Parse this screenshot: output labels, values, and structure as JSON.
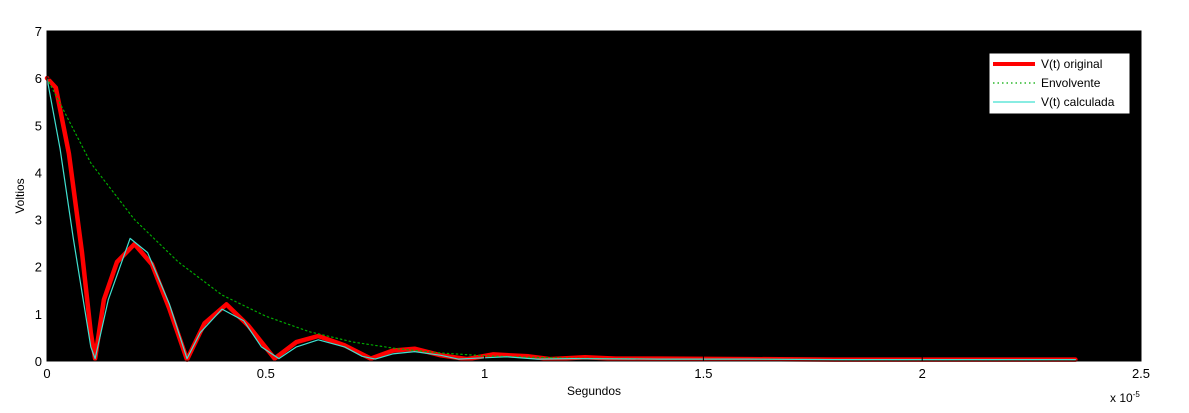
{
  "chart_data": {
    "type": "line",
    "xlabel": "Segundos",
    "ylabel": "Voltios",
    "x_multiplier_base": "x 10",
    "x_multiplier_exp": "-5",
    "xlim": [
      0,
      2.5
    ],
    "ylim": [
      0,
      7
    ],
    "xticks": [
      0,
      0.5,
      1,
      1.5,
      2,
      2.5
    ],
    "xtick_labels": [
      "0",
      "0.5",
      "1",
      "1.5",
      "2",
      "2.5"
    ],
    "yticks": [
      0,
      1,
      2,
      3,
      4,
      5,
      6,
      7
    ],
    "ytick_labels": [
      "0",
      "1",
      "2",
      "3",
      "4",
      "5",
      "6",
      "7"
    ],
    "grid": false,
    "legend_position": "top-right",
    "colors": {
      "plot_background": "#000000",
      "original": "#ff0000",
      "envolvente": "#00aa00",
      "calculada": "#40e0d0"
    },
    "series": [
      {
        "name": "V(t) original",
        "style": "thick-solid",
        "x": [
          0,
          0.02,
          0.05,
          0.08,
          0.1,
          0.11,
          0.13,
          0.16,
          0.2,
          0.24,
          0.28,
          0.32,
          0.36,
          0.41,
          0.46,
          0.52,
          0.57,
          0.62,
          0.68,
          0.74,
          0.79,
          0.84,
          0.9,
          0.96,
          1.02,
          1.1,
          1.15,
          1.23,
          1.3,
          1.4,
          1.6,
          1.8,
          2.0,
          2.2,
          2.35
        ],
        "y": [
          6.0,
          5.8,
          4.4,
          2.3,
          0.6,
          0.05,
          1.3,
          2.1,
          2.48,
          2.05,
          1.1,
          0.03,
          0.8,
          1.2,
          0.75,
          0.05,
          0.4,
          0.53,
          0.33,
          0.05,
          0.22,
          0.26,
          0.12,
          0.04,
          0.14,
          0.1,
          0.04,
          0.08,
          0.05,
          0.05,
          0.04,
          0.03,
          0.03,
          0.03,
          0.03
        ]
      },
      {
        "name": "Envolvente",
        "style": "dotted",
        "x": [
          0,
          0.1,
          0.2,
          0.3,
          0.4,
          0.5,
          0.6,
          0.7,
          0.8,
          0.9,
          1.0,
          1.1,
          1.2,
          1.3,
          1.4,
          1.6,
          1.8,
          2.0,
          2.2,
          2.35
        ],
        "y": [
          6.0,
          4.2,
          3.0,
          2.1,
          1.4,
          0.95,
          0.62,
          0.4,
          0.26,
          0.17,
          0.11,
          0.08,
          0.06,
          0.05,
          0.04,
          0.04,
          0.03,
          0.03,
          0.03,
          0.03
        ]
      },
      {
        "name": "V(t) calculada",
        "style": "solid",
        "x": [
          0,
          0.03,
          0.06,
          0.1,
          0.11,
          0.14,
          0.19,
          0.23,
          0.28,
          0.32,
          0.35,
          0.4,
          0.45,
          0.49,
          0.53,
          0.57,
          0.62,
          0.68,
          0.72,
          0.75,
          0.79,
          0.84,
          0.9,
          0.94,
          0.98,
          1.05,
          1.12,
          1.2,
          1.4,
          1.6,
          1.8,
          2.0,
          2.2,
          2.35
        ],
        "y": [
          6.0,
          4.5,
          2.6,
          0.3,
          0.05,
          1.3,
          2.6,
          2.3,
          1.2,
          0.05,
          0.6,
          1.1,
          0.85,
          0.3,
          0.05,
          0.3,
          0.45,
          0.3,
          0.1,
          0.04,
          0.15,
          0.2,
          0.12,
          0.04,
          0.06,
          0.09,
          0.04,
          0.05,
          0.04,
          0.04,
          0.03,
          0.03,
          0.03,
          0.03
        ]
      }
    ]
  }
}
